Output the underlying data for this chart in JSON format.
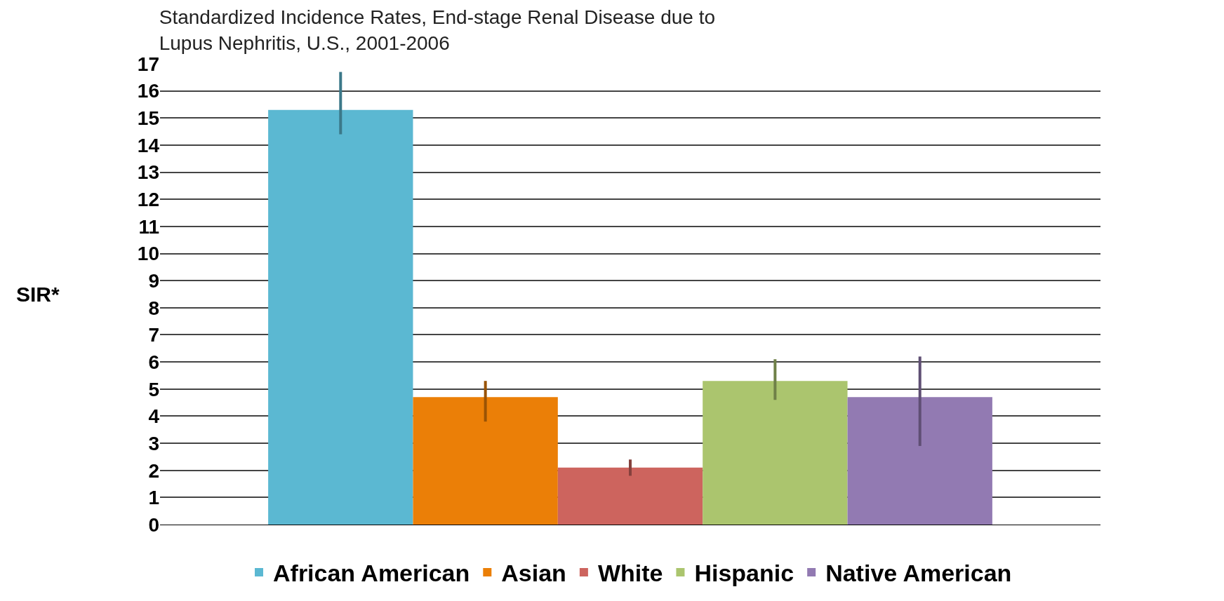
{
  "chart_data": {
    "type": "bar",
    "title": "Standardized Incidence Rates, End-stage Renal Disease due to Lupus Nephritis, U.S., 2001-2006",
    "ylabel": "SIR*",
    "categories": [
      null
    ],
    "series": [
      {
        "name": "African American",
        "color": "#5bb8d2",
        "values": [
          15.3
        ],
        "errors": [
          [
            14.4,
            16.7
          ]
        ]
      },
      {
        "name": "Asian",
        "color": "#eb7f07",
        "values": [
          4.7
        ],
        "errors": [
          [
            3.8,
            5.3
          ]
        ]
      },
      {
        "name": "White",
        "color": "#cd645e",
        "values": [
          2.1
        ],
        "errors": [
          [
            1.8,
            2.4
          ]
        ]
      },
      {
        "name": "Hispanic",
        "color": "#abc56e",
        "values": [
          5.3
        ],
        "errors": [
          [
            4.6,
            6.1
          ]
        ]
      },
      {
        "name": "Native American",
        "color": "#927ab2",
        "values": [
          4.7
        ],
        "errors": [
          [
            2.9,
            6.2
          ]
        ]
      }
    ],
    "ylim": [
      0,
      17
    ],
    "yticks": [
      0,
      1,
      2,
      3,
      4,
      5,
      6,
      7,
      8,
      9,
      10,
      11,
      12,
      13,
      14,
      15,
      16,
      17
    ],
    "grid": "y",
    "legend": "bottom"
  }
}
